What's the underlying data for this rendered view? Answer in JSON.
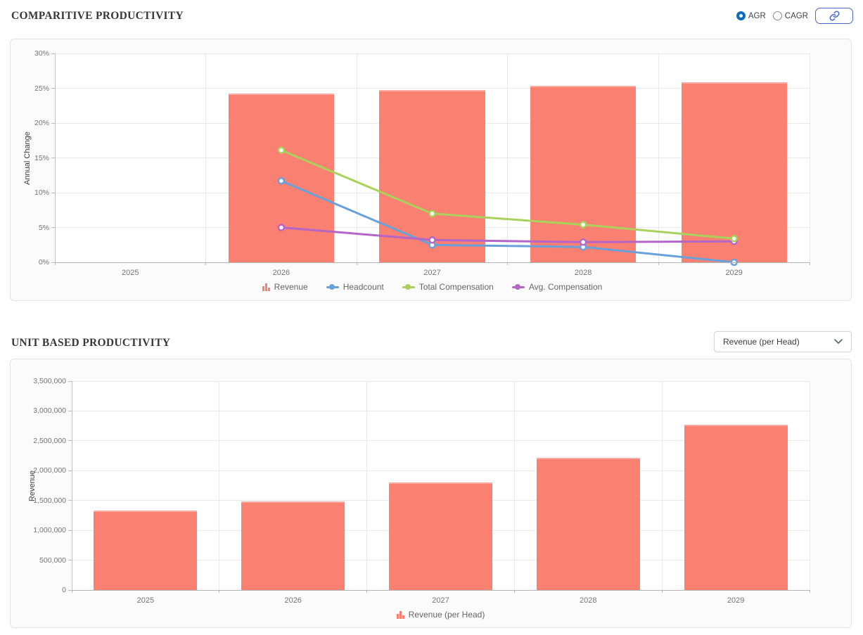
{
  "sections": [
    {
      "title": "COMPARITIVE PRODUCTIVITY",
      "controls": {
        "radio_group": {
          "options": [
            "AGR",
            "CAGR"
          ],
          "selected": "AGR"
        },
        "link_button_icon": "link"
      }
    },
    {
      "title": "UNIT BASED PRODUCTIVITY",
      "controls": {
        "dropdown": {
          "value": "Revenue (per Head)",
          "icon": "chevron-down"
        }
      }
    }
  ],
  "colors": {
    "bar_salmon": "#fa8072",
    "headcount_blue": "#68a1d9",
    "total_comp_green": "#a9d15c",
    "avg_comp_purple": "#b564c8",
    "radio_accent": "#0f6cbd",
    "link_button_blue": "#4a67cc"
  },
  "chart_data": [
    {
      "type": "bar+line",
      "title": "Comparitive Productivity (Annual Change)",
      "xlabel": "",
      "ylabel": "Annual Change",
      "categories": [
        "2025",
        "2026",
        "2027",
        "2028",
        "2029"
      ],
      "ylim": [
        0,
        30
      ],
      "ytick_step": 5,
      "ytick_format": "percent",
      "grid": true,
      "legend_position": "bottom",
      "bar_series": [
        {
          "name": "Revenue",
          "color": "#fa8072",
          "values": [
            null,
            24.2,
            24.7,
            25.4,
            25.9
          ]
        }
      ],
      "line_series": [
        {
          "name": "Headcount",
          "color": "#68a1d9",
          "values": [
            null,
            11.7,
            2.5,
            2.2,
            0
          ]
        },
        {
          "name": "Total Compensation",
          "color": "#a9d15c",
          "values": [
            null,
            16.1,
            7.0,
            5.4,
            3.4
          ]
        },
        {
          "name": "Avg. Compensation",
          "color": "#b564c8",
          "values": [
            null,
            5.0,
            3.2,
            2.9,
            3.0
          ]
        }
      ]
    },
    {
      "type": "bar",
      "title": "Unit Based Productivity",
      "xlabel": "",
      "ylabel": "Revenue",
      "categories": [
        "2025",
        "2026",
        "2027",
        "2028",
        "2029"
      ],
      "ylim": [
        0,
        3500000
      ],
      "ytick_step": 500000,
      "ytick_format": "thousands",
      "grid": true,
      "legend_position": "bottom",
      "bar_series": [
        {
          "name": "Revenue (per Head)",
          "color": "#fa8072",
          "values": [
            1330000,
            1490000,
            1800000,
            2210000,
            2770000
          ]
        }
      ],
      "line_series": []
    }
  ]
}
